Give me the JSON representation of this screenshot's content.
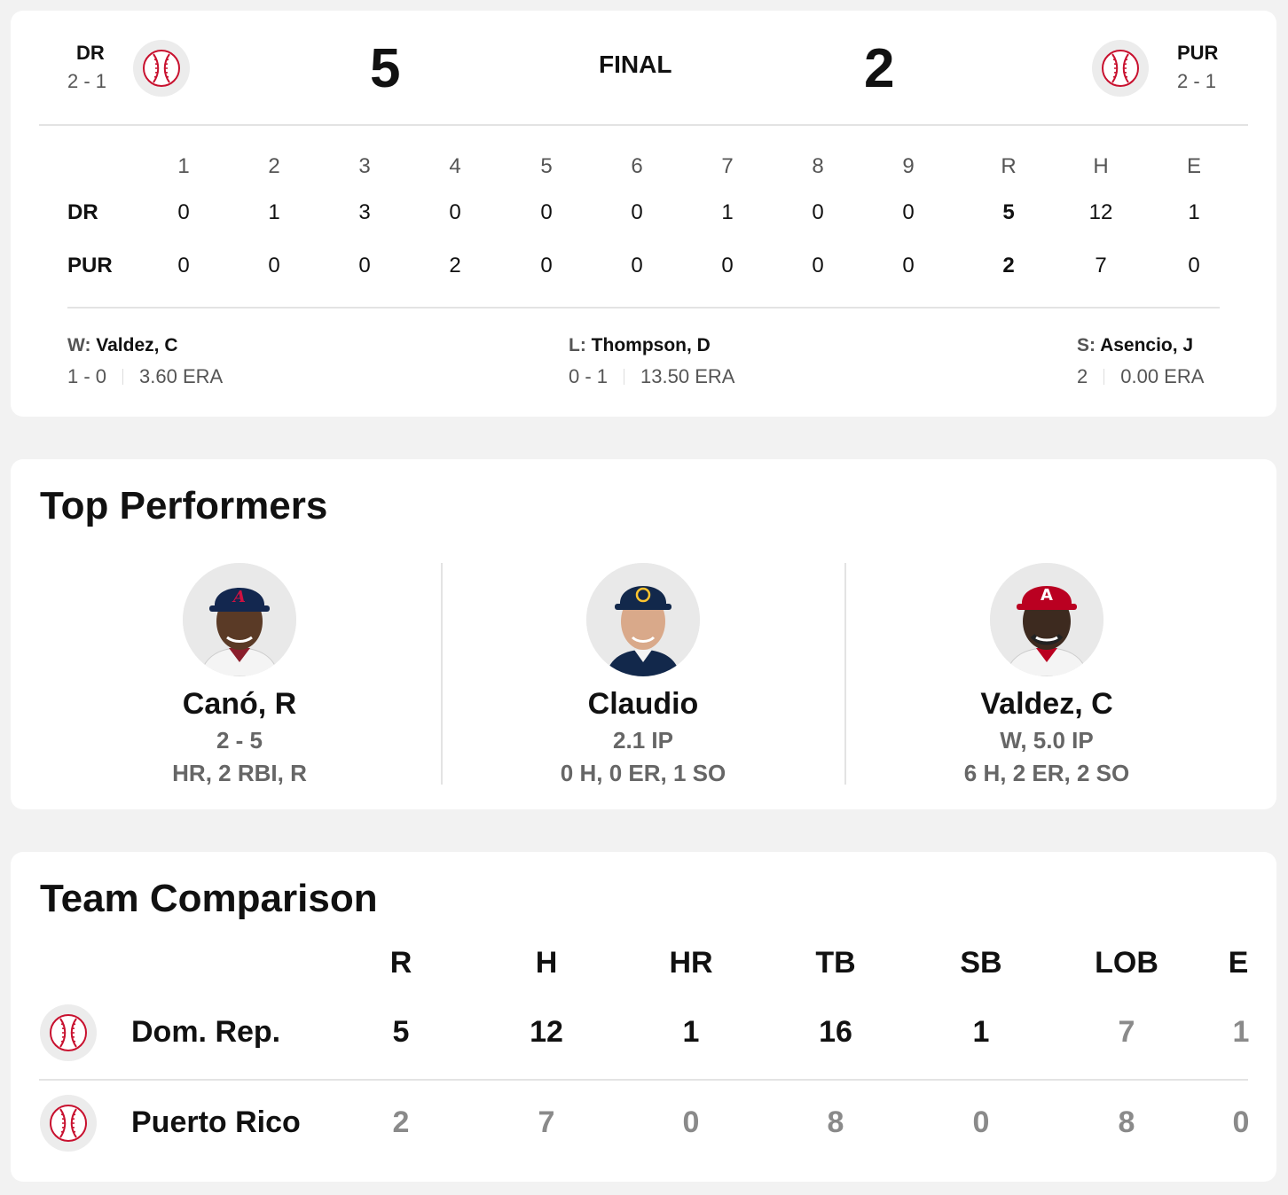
{
  "scoreboard": {
    "away": {
      "abbr": "DR",
      "record": "2 - 1",
      "score": "5"
    },
    "home": {
      "abbr": "PUR",
      "record": "2 - 1",
      "score": "2"
    },
    "status": "FINAL"
  },
  "linescore": {
    "headers": [
      "1",
      "2",
      "3",
      "4",
      "5",
      "6",
      "7",
      "8",
      "9",
      "R",
      "H",
      "E"
    ],
    "rows": [
      {
        "team": "DR",
        "values": [
          "0",
          "1",
          "3",
          "0",
          "0",
          "0",
          "1",
          "0",
          "0",
          "5",
          "12",
          "1"
        ]
      },
      {
        "team": "PUR",
        "values": [
          "0",
          "0",
          "0",
          "2",
          "0",
          "0",
          "0",
          "0",
          "0",
          "2",
          "7",
          "0"
        ]
      }
    ]
  },
  "pitchers": [
    {
      "prefix": "W:",
      "name": "Valdez, C",
      "record": "1 - 0",
      "era": "3.60 ERA"
    },
    {
      "prefix": "L:",
      "name": "Thompson, D",
      "record": "0 - 1",
      "era": "13.50 ERA"
    },
    {
      "prefix": "S:",
      "name": "Asencio, J",
      "record": "2",
      "era": "0.00 ERA"
    }
  ],
  "top_performers": {
    "title": "Top Performers",
    "players": [
      {
        "name": "Canó, R",
        "line1": "2 - 5",
        "line2": "HR, 2 RBI, R",
        "cap_color": "#13274f",
        "logo_color": "#ce1141"
      },
      {
        "name": "Claudio",
        "line1": "2.1 IP",
        "line2": "0 H, 0 ER, 1 SO",
        "cap_color": "#12284b",
        "logo_color": "#ffc52f"
      },
      {
        "name": "Valdez, C",
        "line1": "W, 5.0 IP",
        "line2": "6 H, 2 ER, 2 SO",
        "cap_color": "#ba0021",
        "logo_color": "#ffffff"
      }
    ]
  },
  "team_comparison": {
    "title": "Team Comparison",
    "headers": [
      "R",
      "H",
      "HR",
      "TB",
      "SB",
      "LOB",
      "E"
    ],
    "rows": [
      {
        "team": "Dom. Rep.",
        "values": [
          "5",
          "12",
          "1",
          "16",
          "1",
          "7",
          "1"
        ]
      },
      {
        "team": "Puerto Rico",
        "values": [
          "2",
          "7",
          "0",
          "8",
          "0",
          "8",
          "0"
        ]
      }
    ]
  },
  "colors": {
    "accent_red": "#c8102e",
    "text_dark": "#111111",
    "text_muted": "#555555"
  }
}
